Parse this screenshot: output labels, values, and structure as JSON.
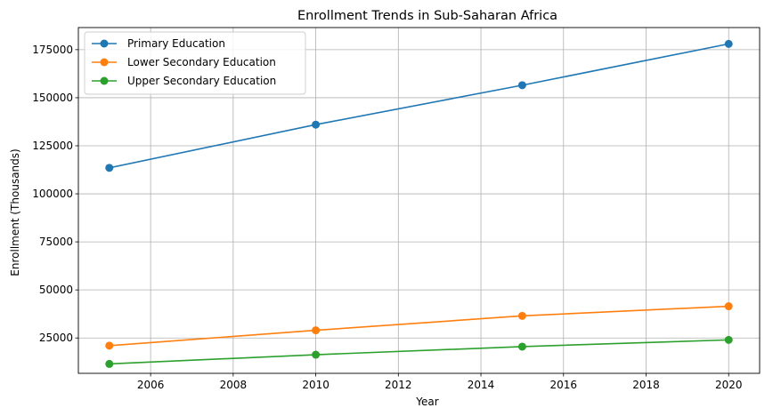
{
  "chart_data": {
    "type": "line",
    "title": "Enrollment Trends in Sub-Saharan Africa",
    "xlabel": "Year",
    "ylabel": "Enrollment (Thousands)",
    "x": [
      2005,
      2010,
      2015,
      2020
    ],
    "xlim": [
      2004.25,
      2020.75
    ],
    "ylim": [
      6600,
      186500
    ],
    "xticks": [
      2006,
      2008,
      2010,
      2012,
      2014,
      2016,
      2018,
      2020
    ],
    "yticks": [
      25000,
      50000,
      75000,
      100000,
      125000,
      150000,
      175000
    ],
    "grid": true,
    "legend_position": "top-left",
    "series": [
      {
        "name": "Primary Education",
        "color": "#1f77b4",
        "values": [
          113500,
          136000,
          156500,
          178000
        ]
      },
      {
        "name": "Lower Secondary Education",
        "color": "#ff7f0e",
        "values": [
          21000,
          29000,
          36500,
          41500
        ]
      },
      {
        "name": "Upper Secondary Education",
        "color": "#2ca02c",
        "values": [
          11500,
          16300,
          20500,
          24000
        ]
      }
    ]
  }
}
